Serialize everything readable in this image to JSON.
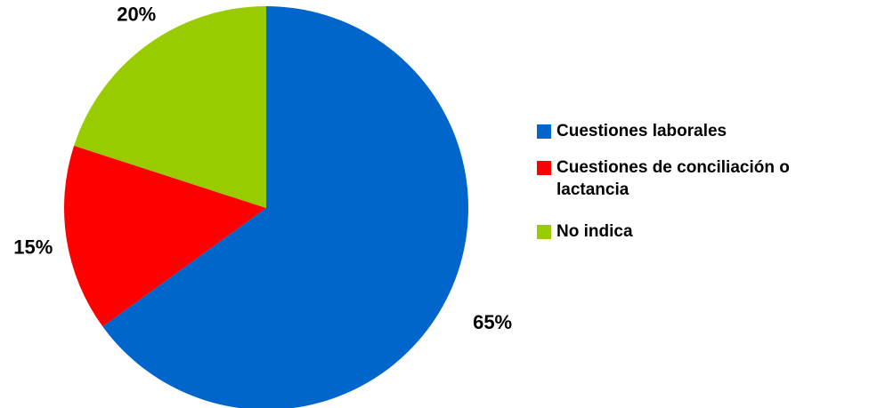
{
  "chart_data": {
    "type": "pie",
    "categories": [
      "Cuestiones laborales",
      "Cuestiones de conciliación o lactancia",
      "No indica"
    ],
    "values": [
      65,
      15,
      20
    ],
    "value_labels": [
      "65%",
      "15%",
      "20%"
    ],
    "colors": [
      "#0066CC",
      "#FF0000",
      "#99CC00"
    ],
    "legend": [
      {
        "lines": [
          "Cuestiones laborales"
        ],
        "color": "#0066CC"
      },
      {
        "lines": [
          "Cuestiones de conciliación o",
          "lactancia"
        ],
        "color": "#FF0000"
      },
      {
        "lines": [
          "No indica"
        ],
        "color": "#99CC00"
      }
    ],
    "legend_position": "right",
    "start": "top",
    "direction": "clockwise"
  }
}
